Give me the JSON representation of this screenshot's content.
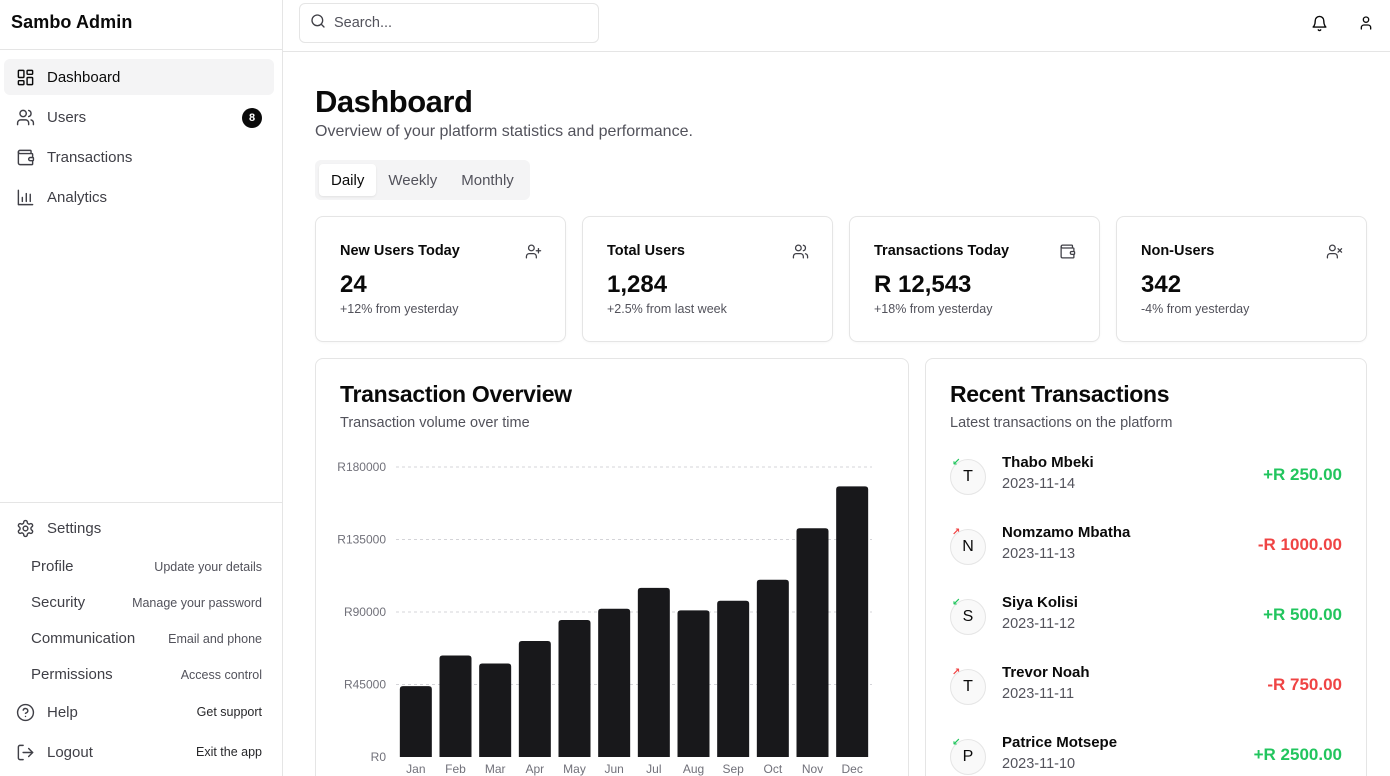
{
  "app": {
    "title": "Sambo Admin"
  },
  "sidebar": {
    "items": [
      {
        "label": "Dashboard",
        "icon": "dashboard-icon",
        "active": true
      },
      {
        "label": "Users",
        "icon": "users-icon",
        "badge": "8"
      },
      {
        "label": "Transactions",
        "icon": "wallet-icon"
      },
      {
        "label": "Analytics",
        "icon": "bar-chart-icon"
      }
    ],
    "settings": {
      "label": "Settings",
      "icon": "gear-icon",
      "subitems": [
        {
          "label": "Profile",
          "desc": "Update your details"
        },
        {
          "label": "Security",
          "desc": "Manage your password"
        },
        {
          "label": "Communication",
          "desc": "Email and phone"
        },
        {
          "label": "Permissions",
          "desc": "Access control"
        }
      ]
    },
    "help": {
      "label": "Help",
      "desc": "Get support",
      "icon": "help-circle-icon"
    },
    "logout": {
      "label": "Logout",
      "desc": "Exit the app",
      "icon": "logout-icon"
    }
  },
  "topbar": {
    "search": {
      "placeholder": "Search...",
      "value": ""
    },
    "icons": [
      "bell-icon",
      "user-icon"
    ]
  },
  "main": {
    "title": "Dashboard",
    "subtitle": "Overview of your platform statistics and performance.",
    "tabs": [
      {
        "label": "Daily",
        "active": true
      },
      {
        "label": "Weekly"
      },
      {
        "label": "Monthly"
      }
    ],
    "stats": [
      {
        "label": "New Users Today",
        "value": "24",
        "delta": "+12% from yesterday",
        "icon": "user-plus-icon"
      },
      {
        "label": "Total Users",
        "value": "1,284",
        "delta": "+2.5% from last week",
        "icon": "users-icon"
      },
      {
        "label": "Transactions Today",
        "value": "R 12,543",
        "delta": "+18% from yesterday",
        "icon": "wallet-icon"
      },
      {
        "label": "Non-Users",
        "value": "342",
        "delta": "-4% from yesterday",
        "icon": "user-x-icon"
      }
    ],
    "overview": {
      "title": "Transaction Overview",
      "subtitle": "Transaction volume over time"
    },
    "recent": {
      "title": "Recent Transactions",
      "subtitle": "Latest transactions on the platform",
      "items": [
        {
          "initial": "T",
          "name": "Thabo Mbeki",
          "date": "2023-11-14",
          "amount": "+R 250.00",
          "direction": "in"
        },
        {
          "initial": "N",
          "name": "Nomzamo Mbatha",
          "date": "2023-11-13",
          "amount": "-R 1000.00",
          "direction": "out"
        },
        {
          "initial": "S",
          "name": "Siya Kolisi",
          "date": "2023-11-12",
          "amount": "+R 500.00",
          "direction": "in"
        },
        {
          "initial": "T",
          "name": "Trevor Noah",
          "date": "2023-11-11",
          "amount": "-R 750.00",
          "direction": "out"
        },
        {
          "initial": "P",
          "name": "Patrice Motsepe",
          "date": "2023-11-10",
          "amount": "+R 2500.00",
          "direction": "in"
        }
      ]
    }
  },
  "colors": {
    "positive": "#22c55e",
    "negative": "#ef4444",
    "bar": "#18181b",
    "border": "#e5e5e5",
    "muted": "#52525b"
  },
  "chart_data": {
    "type": "bar",
    "categories": [
      "Jan",
      "Feb",
      "Mar",
      "Apr",
      "May",
      "Jun",
      "Jul",
      "Aug",
      "Sep",
      "Oct",
      "Nov",
      "Dec"
    ],
    "values": [
      44000,
      63000,
      58000,
      72000,
      85000,
      92000,
      105000,
      91000,
      97000,
      110000,
      142000,
      168000
    ],
    "yticks": [
      "R0",
      "R45000",
      "R90000",
      "R135000",
      "R180000"
    ],
    "ylim": [
      0,
      180000
    ],
    "grid": true,
    "title": "",
    "xlabel": "",
    "ylabel": ""
  }
}
